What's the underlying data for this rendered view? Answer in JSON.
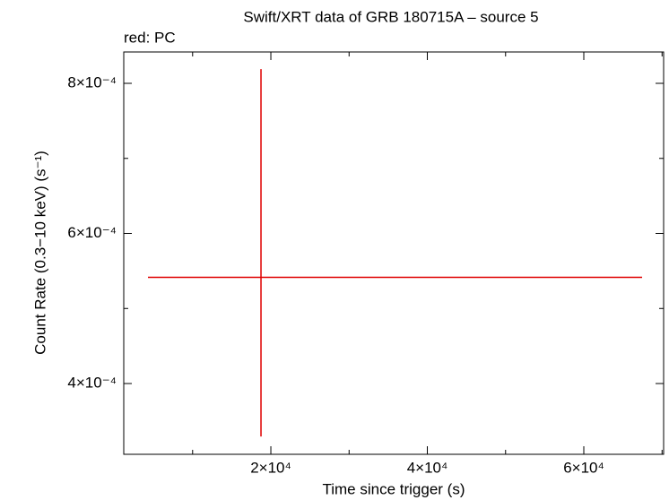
{
  "chart_data": {
    "type": "errorbar",
    "title": "Swift/XRT data of GRB 180715A – source 5",
    "subtitle": "red: PC",
    "x_label": "Time since trigger (s)",
    "y_label": "Count Rate (0.3−10 keV) (s⁻¹)",
    "color": "#e00000",
    "x": [
      18740
    ],
    "xerr_minus": [
      14445
    ],
    "xerr_plus": [
      48710
    ],
    "values": [
      0.0005415
    ],
    "yerr_minus": [
      0.000212
    ],
    "yerr_plus": [
      0.0002775
    ],
    "xlim": [
      1200,
      70200
    ],
    "xticks": [
      {
        "value": 20000,
        "label": "2×10⁴"
      },
      {
        "value": 40000,
        "label": "4×10⁴"
      },
      {
        "value": 60000,
        "label": "6×10⁴"
      }
    ],
    "xminorticks": [
      10000,
      30000,
      50000,
      70000
    ],
    "ylim": [
      0.0003057,
      0.0008418
    ],
    "yticks": [
      {
        "value": 0.0004,
        "label": "4×10⁻⁴"
      },
      {
        "value": 0.0006,
        "label": "6×10⁻⁴"
      },
      {
        "value": 0.0008,
        "label": "8×10⁻⁴"
      }
    ],
    "yminorticks": [
      0.0005,
      0.0007
    ]
  }
}
